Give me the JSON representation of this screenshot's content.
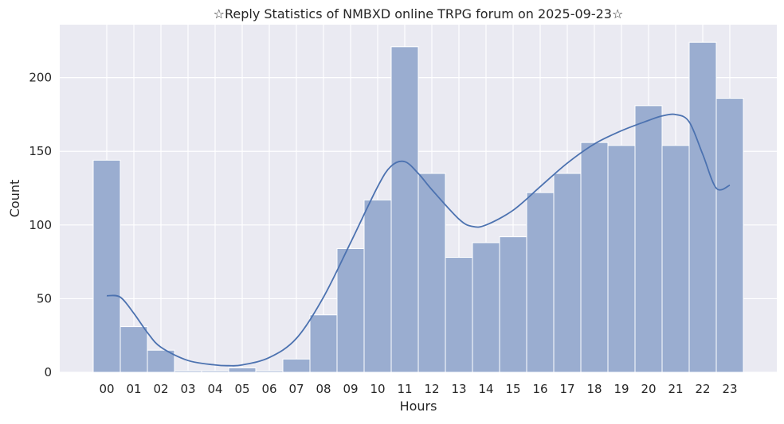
{
  "chart_data": {
    "type": "bar",
    "title": "☆Reply Statistics of NMBXD online TRPG forum on 2025-09-23☆",
    "xlabel": "Hours",
    "ylabel": "Count",
    "categories": [
      "00",
      "01",
      "02",
      "03",
      "04",
      "05",
      "06",
      "07",
      "08",
      "09",
      "10",
      "11",
      "12",
      "13",
      "14",
      "15",
      "16",
      "17",
      "18",
      "19",
      "20",
      "21",
      "22",
      "23"
    ],
    "values": [
      144,
      31,
      15,
      1,
      1,
      3,
      1,
      9,
      39,
      84,
      117,
      221,
      135,
      78,
      88,
      92,
      122,
      135,
      156,
      154,
      181,
      154,
      224,
      186
    ],
    "y_ticks": [
      0,
      50,
      100,
      150,
      200
    ],
    "ylim": [
      0,
      236
    ],
    "kde": {
      "x": [
        0,
        0.5,
        1,
        1.5,
        2,
        3,
        4,
        4.5,
        5,
        6,
        7,
        8,
        9,
        10,
        10.5,
        11,
        11.5,
        12,
        13,
        13.5,
        14,
        15,
        16,
        17,
        18,
        19,
        20,
        20.5,
        21,
        21.5,
        22,
        22.5,
        23
      ],
      "y": [
        52,
        51,
        40,
        27,
        17,
        8,
        5,
        4.5,
        5,
        10,
        23,
        51,
        88,
        126,
        140,
        143,
        135,
        124,
        104,
        99,
        100,
        110,
        126,
        142,
        155,
        164,
        171,
        174,
        175,
        170,
        148,
        125,
        127
      ]
    },
    "colors": {
      "bar_fill": "#9aadd0",
      "bar_stroke": "#ffffff",
      "kde_line": "#4c72b0",
      "plot_bg": "#eaeaf2",
      "grid": "#ffffff"
    },
    "grid": true,
    "legend": "none"
  }
}
